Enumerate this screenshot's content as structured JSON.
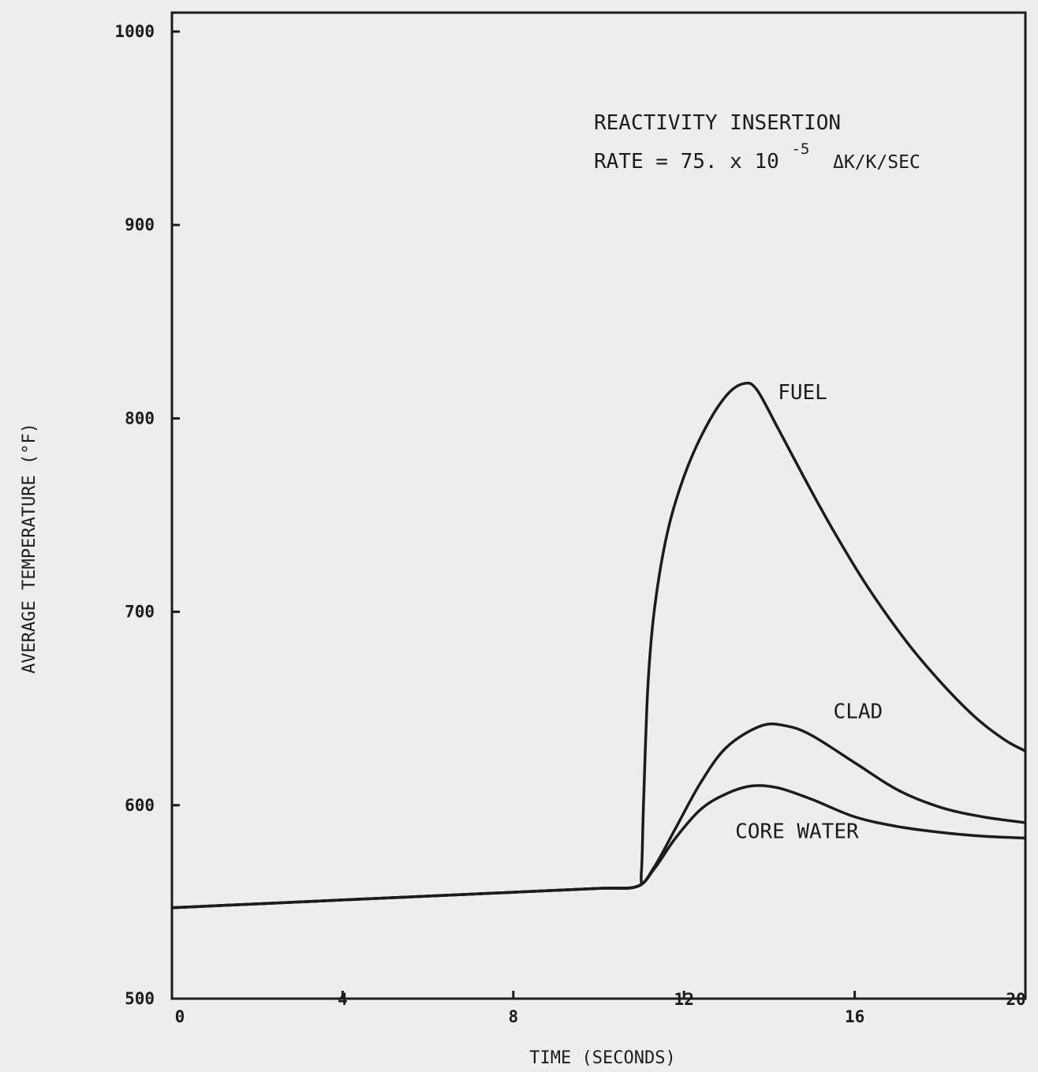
{
  "chart_data": {
    "type": "line",
    "xlabel": "TIME (SECONDS)",
    "ylabel": "AVERAGE TEMPERATURE (°F)",
    "xlim": [
      0,
      20
    ],
    "ylim": [
      500,
      1000
    ],
    "x_ticks": [
      "0",
      "4",
      "8",
      "12",
      "16",
      "20"
    ],
    "y_ticks": [
      "500",
      "600",
      "700",
      "800",
      "900",
      "1000"
    ],
    "grid": false,
    "annotation": {
      "line1": "REACTIVITY INSERTION",
      "line2_prefix": "RATE = 75. x 10",
      "line2_exp": "-5",
      "line2_suffix": "ΔK/K/SEC"
    },
    "series": [
      {
        "name": "FUEL",
        "points": [
          [
            0,
            547
          ],
          [
            2,
            549
          ],
          [
            4,
            551
          ],
          [
            6,
            553
          ],
          [
            8,
            555
          ],
          [
            10,
            557
          ],
          [
            10.9,
            558
          ],
          [
            11.0,
            565
          ],
          [
            11.05,
            600
          ],
          [
            11.15,
            660
          ],
          [
            11.3,
            700
          ],
          [
            11.6,
            740
          ],
          [
            12.0,
            770
          ],
          [
            12.5,
            795
          ],
          [
            13.0,
            812
          ],
          [
            13.4,
            818
          ],
          [
            13.7,
            815
          ],
          [
            14.2,
            795
          ],
          [
            14.8,
            770
          ],
          [
            15.5,
            742
          ],
          [
            16.3,
            713
          ],
          [
            17.2,
            685
          ],
          [
            18.0,
            664
          ],
          [
            18.8,
            646
          ],
          [
            19.5,
            634
          ],
          [
            20.0,
            628
          ]
        ],
        "label_at": [
          14.2,
          810
        ]
      },
      {
        "name": "CLAD",
        "points": [
          [
            0,
            547
          ],
          [
            2,
            549
          ],
          [
            4,
            551
          ],
          [
            6,
            553
          ],
          [
            8,
            555
          ],
          [
            10,
            557
          ],
          [
            10.9,
            558
          ],
          [
            11.3,
            568
          ],
          [
            11.8,
            588
          ],
          [
            12.4,
            612
          ],
          [
            13.0,
            630
          ],
          [
            13.8,
            641
          ],
          [
            14.4,
            641
          ],
          [
            15.0,
            636
          ],
          [
            16.0,
            622
          ],
          [
            17.0,
            608
          ],
          [
            18.0,
            599
          ],
          [
            19.0,
            594
          ],
          [
            20.0,
            591
          ]
        ],
        "label_at": [
          15.5,
          645
        ]
      },
      {
        "name": "CORE WATER",
        "points": [
          [
            0,
            547
          ],
          [
            2,
            549
          ],
          [
            4,
            551
          ],
          [
            6,
            553
          ],
          [
            8,
            555
          ],
          [
            10,
            557
          ],
          [
            10.9,
            558
          ],
          [
            11.3,
            567
          ],
          [
            11.8,
            583
          ],
          [
            12.4,
            598
          ],
          [
            13.0,
            606
          ],
          [
            13.6,
            610
          ],
          [
            14.2,
            609
          ],
          [
            15.0,
            603
          ],
          [
            16.0,
            594
          ],
          [
            17.0,
            589
          ],
          [
            18.0,
            586
          ],
          [
            19.0,
            584
          ],
          [
            20.0,
            583
          ]
        ],
        "label_at": [
          13.2,
          583
        ]
      }
    ]
  }
}
